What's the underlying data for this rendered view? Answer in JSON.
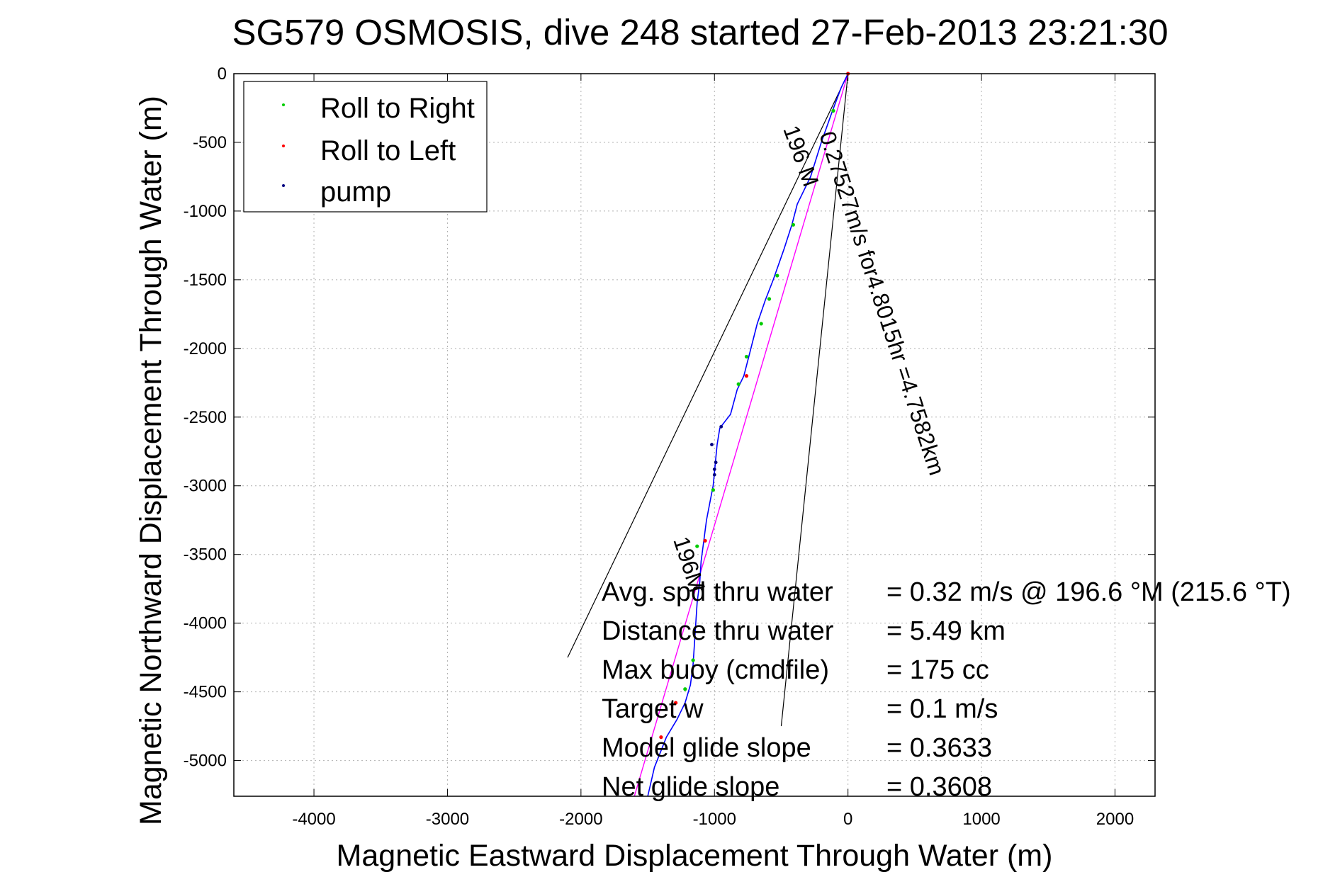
{
  "chart_data": {
    "type": "line",
    "title": "SG579 OSMOSIS, dive 248 started 27-Feb-2013 23:21:30",
    "xlabel": "Magnetic Eastward Displacement Through Water (m)",
    "ylabel": "Magnetic Northward Displacement Through Water (m)",
    "xlim": [
      -4600,
      2300
    ],
    "ylim": [
      -5260,
      0
    ],
    "xticks": [
      -4000,
      -3000,
      -2000,
      -1000,
      0,
      1000,
      2000
    ],
    "yticks": [
      0,
      -500,
      -1000,
      -1500,
      -2000,
      -2500,
      -3000,
      -3500,
      -4000,
      -4500,
      -5000
    ],
    "grid": true,
    "legend": {
      "position": "top-left",
      "entries": [
        {
          "name": "Roll to Right",
          "color": "#00cc00"
        },
        {
          "name": "Roll to Left",
          "color": "#ff0000"
        },
        {
          "name": "pump",
          "color": "#000080"
        }
      ]
    },
    "colors": {
      "track": "#0000ff",
      "heading_line": "#ff00ff",
      "roll_right": "#00cc00",
      "roll_left": "#ff0000",
      "pump": "#000080"
    },
    "track": {
      "x": [
        0,
        -50,
        -120,
        -200,
        -280,
        -380,
        -420,
        -480,
        -560,
        -620,
        -680,
        -740,
        -780,
        -830,
        -880,
        -960,
        -980,
        -990,
        -1000,
        -1010,
        -1030,
        -1060,
        -1080,
        -1100,
        -1110,
        -1130,
        -1140,
        -1150,
        -1160,
        -1180,
        -1220,
        -1280,
        -1360,
        -1450,
        -1500
      ],
      "y": [
        0,
        -100,
        -280,
        -500,
        -750,
        -950,
        -1100,
        -1280,
        -1500,
        -1650,
        -1820,
        -2050,
        -2200,
        -2300,
        -2480,
        -2580,
        -2700,
        -2800,
        -2900,
        -3000,
        -3100,
        -3250,
        -3400,
        -3550,
        -3700,
        -3850,
        -4000,
        -4150,
        -4300,
        -4450,
        -4580,
        -4700,
        -4830,
        -5050,
        -5260
      ]
    },
    "heading_line": {
      "x": [
        0,
        -1600
      ],
      "y": [
        0,
        -5260
      ]
    },
    "cone_lines": [
      {
        "x": [
          0,
          -2100
        ],
        "y": [
          0,
          -4250
        ]
      },
      {
        "x": [
          0,
          -500
        ],
        "y": [
          0,
          -4750
        ]
      }
    ],
    "roll_right_points": {
      "x": [
        -110,
        -410,
        -530,
        -590,
        -650,
        -760,
        -820,
        -1010,
        -1130,
        -1160,
        -1220
      ],
      "y": [
        -270,
        -1100,
        -1470,
        -1640,
        -1820,
        -2060,
        -2260,
        -3030,
        -3440,
        -4270,
        -4480
      ]
    },
    "roll_left_points": {
      "x": [
        0,
        -760,
        -1070,
        -1290,
        -1400
      ],
      "y": [
        0,
        -2200,
        -3400,
        -4580,
        -4830
      ]
    },
    "pump_points": {
      "x": [
        -950,
        -990,
        -1000,
        -1000,
        -1020
      ],
      "y": [
        -2570,
        -2830,
        -2880,
        -2920,
        -2700
      ]
    },
    "annotations": {
      "heading_label": "196 M",
      "speed_label": "0.27527m/s for4.8015hr =4.7582km",
      "heading_label_lower": "196M"
    },
    "stats": {
      "rows": [
        {
          "label": "Avg. spd thru water",
          "value": "=  0.32 m/s @ 196.6 °M (215.6 °T)"
        },
        {
          "label": "Distance thru water",
          "value": "=  5.49 km"
        },
        {
          "label": "Max buoy (cmdfile)",
          "value": "= 175 cc"
        },
        {
          "label": "Target w",
          "value": "= 0.1 m/s"
        },
        {
          "label": "Model glide slope",
          "value": "= 0.3633"
        },
        {
          "label": "Net glide slope",
          "value": "= 0.3608"
        }
      ]
    }
  }
}
